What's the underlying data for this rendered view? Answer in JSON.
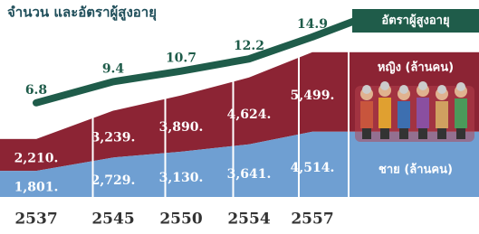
{
  "chart_data": {
    "type": "stacked-area-line",
    "title": "จำนวน และอัตราผู้สูงอายุ",
    "categories": [
      "2537",
      "2545",
      "2550",
      "2554",
      "2557"
    ],
    "series": [
      {
        "name": "ชาย (ล้านคน)",
        "color": "#6f9fd2",
        "values": [
          1801,
          2729,
          3130,
          3641,
          4514
        ],
        "value_labels": [
          "1,801.",
          "2,729.",
          "3,130.",
          "3,641.",
          "4,514."
        ]
      },
      {
        "name": "หญิง (ล้านคน)",
        "color": "#8c2434",
        "values": [
          2210,
          3239,
          3890,
          4624,
          5499
        ],
        "value_labels": [
          "2,210.",
          "3,239.",
          "3,890.",
          "4,624.",
          "5,499."
        ]
      },
      {
        "name": "อัตราผู้สูงอายุ",
        "color": "#1f5c4a",
        "values": [
          6.8,
          9.4,
          10.7,
          12.2,
          14.9
        ]
      }
    ]
  }
}
